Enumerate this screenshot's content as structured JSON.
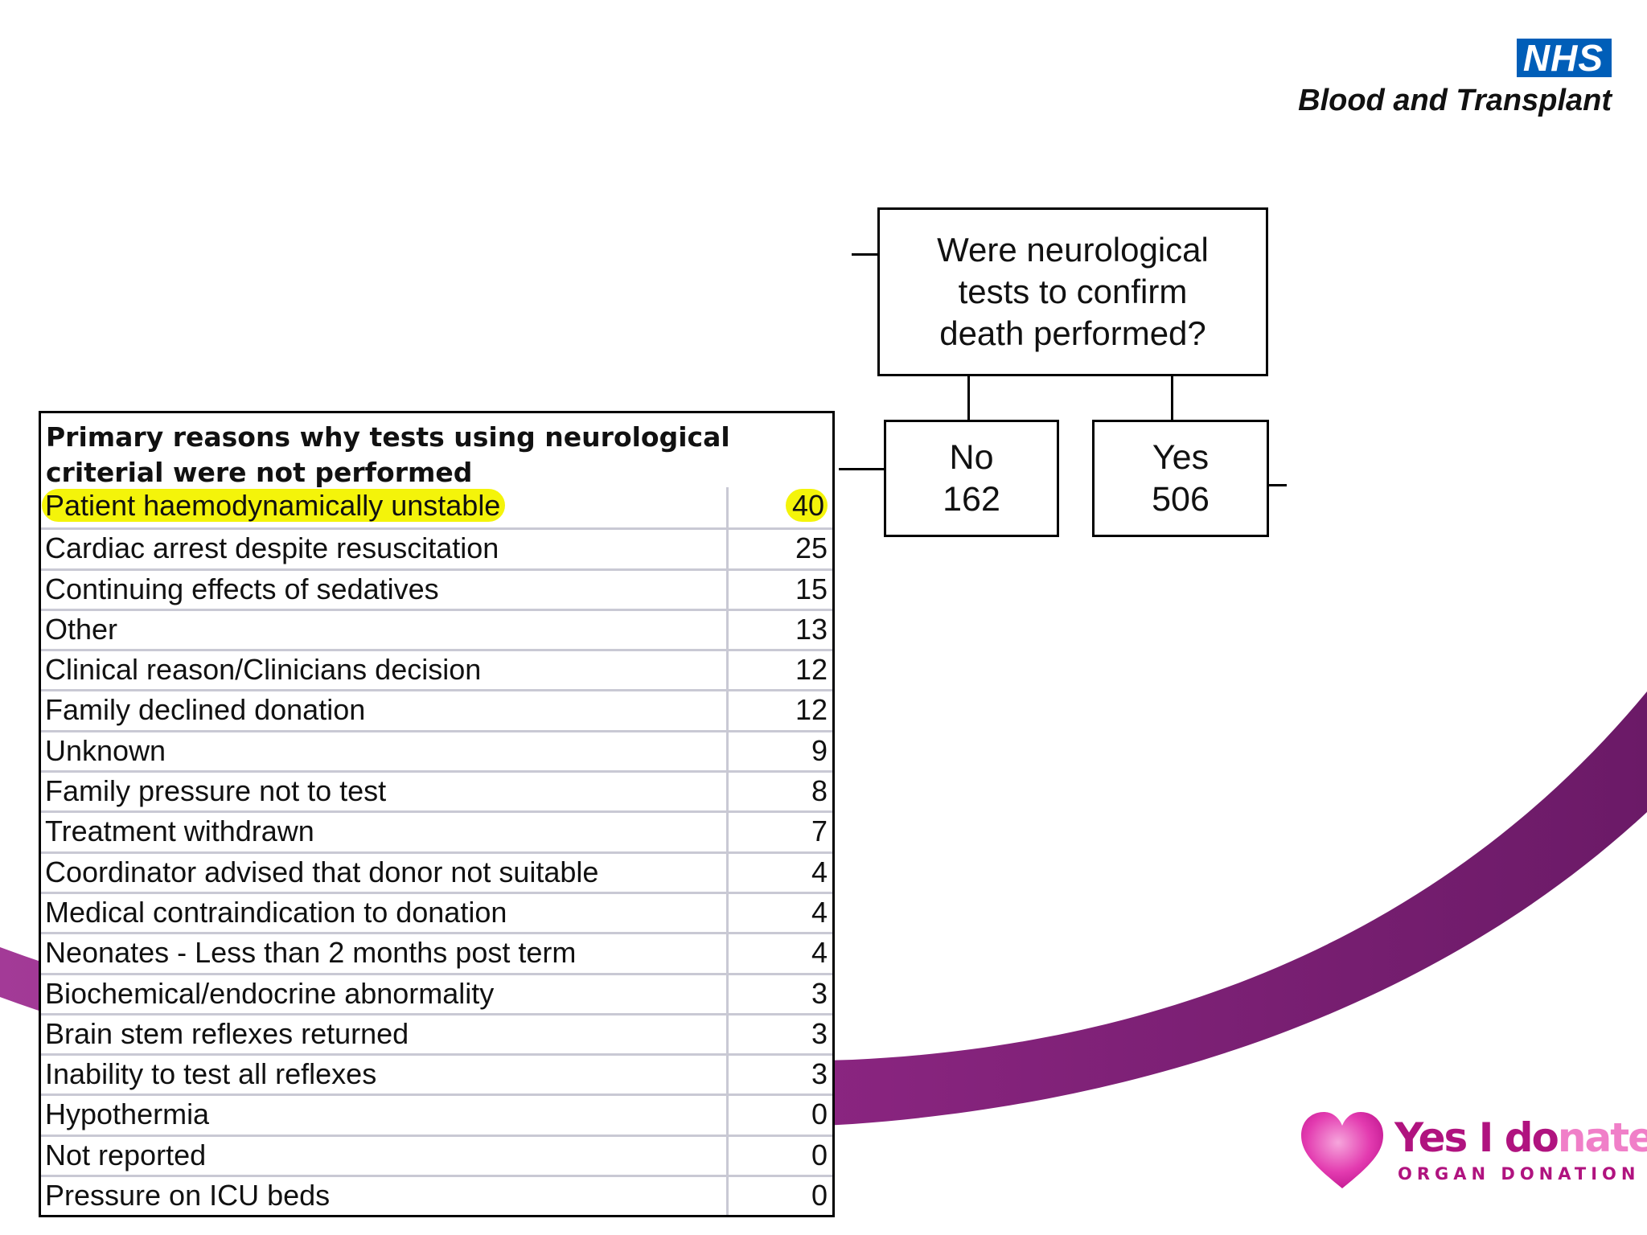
{
  "brand": {
    "nhs_badge": "NHS",
    "nhs_org": "Blood and Transplant",
    "campaign_yes": "Yes I do",
    "campaign_fade": "nate",
    "campaign_sub": "ORGAN DONATION",
    "colors": {
      "nhs_blue": "#005eb8",
      "purple": "#7b1f74",
      "magenta": "#b0137f",
      "highlight": "#f4f40a"
    }
  },
  "flowchart": {
    "question_lines": [
      "Were neurological",
      "tests to confirm",
      "death performed?"
    ],
    "no": {
      "label": "No",
      "count": "162"
    },
    "yes": {
      "label": "Yes",
      "count": "506"
    }
  },
  "table": {
    "header": "Primary reasons why tests using neurological criterial were not performed",
    "rows": [
      {
        "reason": "Patient haemodynamically unstable",
        "count": "40",
        "highlighted": true
      },
      {
        "reason": "Cardiac arrest despite resuscitation",
        "count": "25"
      },
      {
        "reason": "Continuing effects of sedatives",
        "count": "15"
      },
      {
        "reason": "Other",
        "count": "13"
      },
      {
        "reason": "Clinical reason/Clinicians decision",
        "count": "12"
      },
      {
        "reason": "Family declined donation",
        "count": "12"
      },
      {
        "reason": "Unknown",
        "count": "9"
      },
      {
        "reason": "Family pressure not to test",
        "count": "8"
      },
      {
        "reason": "Treatment withdrawn",
        "count": "7"
      },
      {
        "reason": "Coordinator advised that donor not suitable",
        "count": "4"
      },
      {
        "reason": "Medical contraindication to donation",
        "count": "4"
      },
      {
        "reason": "Neonates - Less than 2 months post term",
        "count": "4"
      },
      {
        "reason": "Biochemical/endocrine abnormality",
        "count": "3"
      },
      {
        "reason": "Brain stem reflexes returned",
        "count": "3"
      },
      {
        "reason": "Inability to test all reflexes",
        "count": "3"
      },
      {
        "reason": "Hypothermia",
        "count": "0"
      },
      {
        "reason": "Not reported",
        "count": "0"
      },
      {
        "reason": "Pressure on ICU beds",
        "count": "0"
      }
    ]
  }
}
